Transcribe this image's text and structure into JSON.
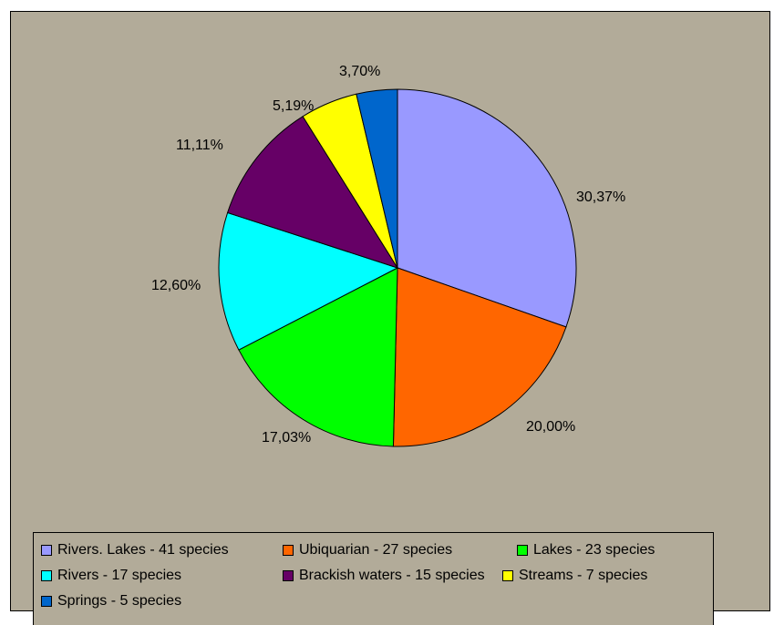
{
  "chart_data": {
    "type": "pie",
    "slices": [
      {
        "legend": "Rivers. Lakes - 41 species",
        "percent_label": "30,37%",
        "value": 30.37,
        "color": "#9999ff"
      },
      {
        "legend": "Ubiquarian - 27 species",
        "percent_label": "20,00%",
        "value": 20.0,
        "color": "#ff6600"
      },
      {
        "legend": "Lakes - 23 species",
        "percent_label": "17,03%",
        "value": 17.03,
        "color": "#00ff00"
      },
      {
        "legend": "Rivers - 17 species",
        "percent_label": "12,60%",
        "value": 12.6,
        "color": "#00ffff"
      },
      {
        "legend": "Brackish waters - 15 species",
        "percent_label": "11,11%",
        "value": 11.11,
        "color": "#660066"
      },
      {
        "legend": "Streams - 7 species",
        "percent_label": "5,19%",
        "value": 5.19,
        "color": "#ffff00"
      },
      {
        "legend": "Springs - 5 species",
        "percent_label": "3,70%",
        "value": 3.7,
        "color": "#0066cc"
      }
    ],
    "legend_position": "bottom",
    "background_color": "#b2ab99"
  }
}
